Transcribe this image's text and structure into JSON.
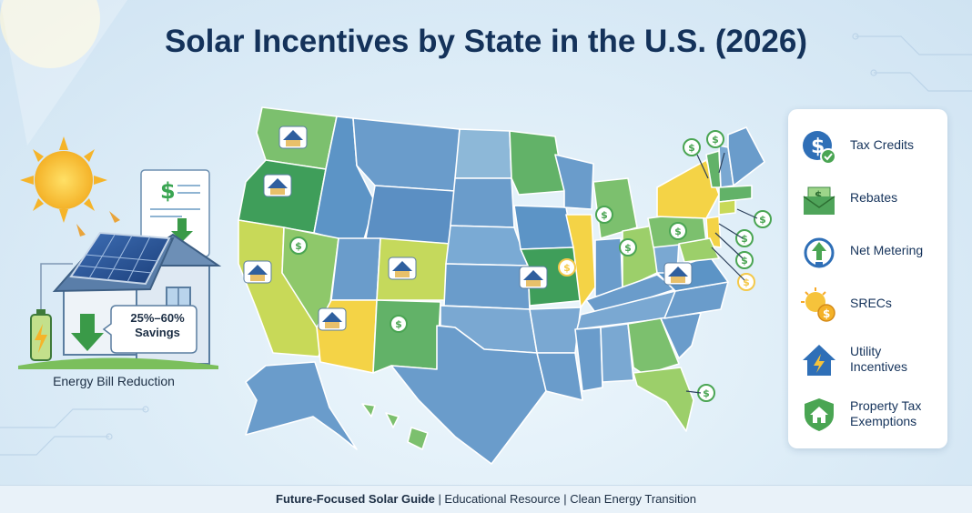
{
  "title": "Solar Incentives by State in the U.S. (2026)",
  "left_panel": {
    "savings_top": "25%–60%",
    "savings_bottom": "Savings",
    "caption": "Energy Bill Reduction"
  },
  "legend": [
    {
      "icon": "dollar-check-icon",
      "label": "Tax Credits"
    },
    {
      "icon": "envelope-cash-icon",
      "label": "Rebates"
    },
    {
      "icon": "net-metering-icon",
      "label": "Net Metering"
    },
    {
      "icon": "sun-coins-icon",
      "label": "SRECs"
    },
    {
      "icon": "house-bolt-icon",
      "label": "Utility Incentives"
    },
    {
      "icon": "shield-house-icon",
      "label": "Property Tax Exemptions"
    }
  ],
  "map": {
    "markers": {
      "dollar": "$"
    },
    "state_colors": {
      "blue": "#6a9ccb",
      "blue_light": "#8db8d8",
      "teal": "#6fb3a6",
      "green": "#62b268",
      "green_light": "#9ccf6a",
      "yellow": "#f4d346",
      "yellow_green": "#c8d958"
    }
  },
  "footer": {
    "bold": "Future-Focused Solar Guide",
    "rest": " | Educational Resource | Clean Energy Transition"
  },
  "colors": {
    "title": "#14325a",
    "accent_blue": "#2f78c4",
    "accent_green": "#3f9b4a",
    "sun": "#f4c430"
  }
}
